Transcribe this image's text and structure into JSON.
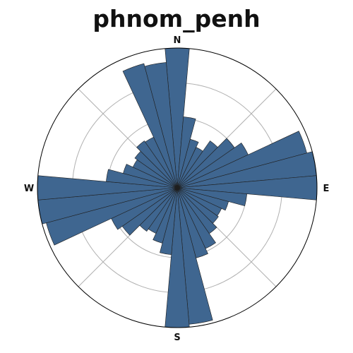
{
  "chart_data": {
    "type": "polar-bar",
    "title": "phnom_penh",
    "direction_labels": [
      "N",
      "E",
      "S",
      "W"
    ],
    "angle_unit": "degrees_clockwise_from_north",
    "bin_width_deg": 10,
    "radial_max": 1.0,
    "radial_gridlines": [
      0.25,
      0.5,
      0.75
    ],
    "angular_gridlines_deg": [
      0,
      45,
      90,
      135,
      180,
      225,
      270,
      315
    ],
    "bar_color": "#3f6690",
    "bar_edge_color": "#1f1f1f",
    "bins_deg": [
      0,
      10,
      20,
      30,
      40,
      50,
      60,
      70,
      80,
      90,
      100,
      110,
      120,
      130,
      140,
      150,
      160,
      170,
      180,
      190,
      200,
      210,
      220,
      230,
      240,
      250,
      260,
      270,
      280,
      290,
      300,
      310,
      320,
      330,
      340,
      350
    ],
    "values": [
      1.0,
      0.51,
      0.36,
      0.32,
      0.41,
      0.5,
      0.56,
      0.96,
      1.0,
      1.0,
      0.5,
      0.38,
      0.35,
      0.36,
      0.4,
      0.48,
      0.52,
      0.98,
      1.0,
      0.48,
      0.41,
      0.36,
      0.38,
      0.48,
      0.52,
      0.97,
      1.0,
      1.0,
      0.51,
      0.4,
      0.35,
      0.37,
      0.41,
      0.4,
      0.92,
      0.9
    ]
  }
}
